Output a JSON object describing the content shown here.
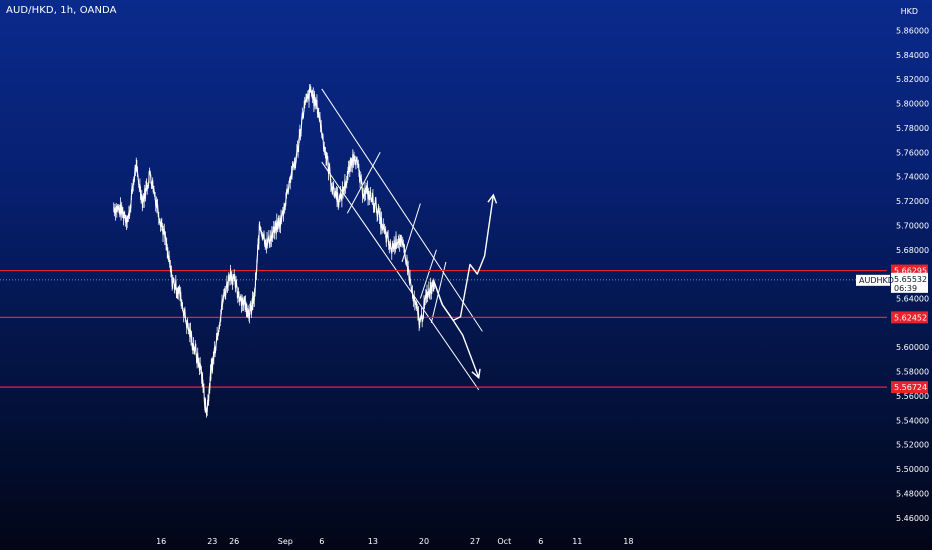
{
  "header": {
    "title": "AUD/HKD, 1h, OANDA"
  },
  "currency_label": "HKD",
  "chart_data": {
    "type": "line",
    "symbol": "AUD/HKD",
    "interval": "1h",
    "source": "OANDA",
    "ylim": [
      5.45,
      5.885
    ],
    "y_ticks": [
      "5.86000",
      "5.84000",
      "5.82000",
      "5.80000",
      "5.78000",
      "5.76000",
      "5.74000",
      "5.72000",
      "5.70000",
      "5.68000",
      "5.64000",
      "5.60000",
      "5.58000",
      "5.56000",
      "5.54000",
      "5.52000",
      "5.50000",
      "5.48000",
      "5.46000"
    ],
    "x_ticks": [
      "16",
      "23",
      "26",
      "Sep",
      "6",
      "13",
      "20",
      "27",
      "Oct",
      "6",
      "11",
      "18"
    ],
    "x_tick_days": [
      -16,
      -9,
      -6,
      1,
      6,
      13,
      20,
      27,
      31,
      36,
      41,
      48
    ],
    "grid": false,
    "current_price": {
      "label": "AUDHKD",
      "value": 5.65532,
      "text": "5.65532",
      "countdown": "06:39"
    },
    "horizontal_levels": [
      {
        "value": 5.66295,
        "text": "5.66295",
        "color": "#e8212b"
      },
      {
        "value": 5.62452,
        "text": "5.62452",
        "color": "#e8212b"
      },
      {
        "value": 5.56724,
        "text": "5.56724",
        "color": "#e8212b"
      }
    ],
    "series": [
      {
        "x": [
          -22.5,
          -21.5,
          -20.5,
          -19.5,
          -18.5,
          -17.5,
          -16.5,
          -15.5,
          -14.5,
          -13.5,
          -12.5,
          -11.5,
          -10.5,
          -9.8,
          -9.2,
          -8.5,
          -7.5,
          -6.5,
          -5.5,
          -4.5,
          -3.8,
          -3.2,
          -2.5,
          -1.5,
          -0.5,
          0.5,
          1.5,
          2.5,
          3.5,
          4.5,
          5.5,
          6.5,
          7.5,
          8.5,
          9.5,
          10.5,
          11.5,
          12.5,
          13.5,
          14.5,
          15.5,
          16.5,
          17.5,
          18.5,
          19.5,
          20.5,
          21.5
        ],
        "y": [
          5.715,
          5.712,
          5.705,
          5.748,
          5.72,
          5.743,
          5.715,
          5.69,
          5.655,
          5.645,
          5.62,
          5.6,
          5.58,
          5.545,
          5.578,
          5.605,
          5.64,
          5.662,
          5.645,
          5.635,
          5.628,
          5.642,
          5.7,
          5.685,
          5.695,
          5.705,
          5.735,
          5.755,
          5.795,
          5.81,
          5.795,
          5.76,
          5.73,
          5.72,
          5.74,
          5.76,
          5.73,
          5.725,
          5.715,
          5.695,
          5.68,
          5.69,
          5.675,
          5.64,
          5.62,
          5.645,
          5.655
        ]
      }
    ]
  },
  "annotations": {
    "channel": {
      "upper": [
        [
          6,
          5.812
        ],
        [
          28,
          5.613
        ]
      ],
      "lower": [
        [
          6,
          5.752
        ],
        [
          27.5,
          5.565
        ]
      ]
    },
    "small_channel_lines": [
      [
        [
          9.5,
          5.71
        ],
        [
          14,
          5.76
        ]
      ],
      [
        [
          17,
          5.67
        ],
        [
          19.5,
          5.718
        ]
      ],
      [
        [
          19.5,
          5.64
        ],
        [
          21.7,
          5.68
        ]
      ],
      [
        [
          21,
          5.62
        ],
        [
          23,
          5.67
        ]
      ]
    ],
    "projection_up": [
      [
        21.3,
        5.655
      ],
      [
        22.5,
        5.635
      ],
      [
        24,
        5.622
      ],
      [
        25,
        5.625
      ],
      [
        26.3,
        5.668
      ],
      [
        27.3,
        5.66
      ],
      [
        28.3,
        5.675
      ],
      [
        29.5,
        5.725
      ]
    ],
    "projection_down": [
      [
        21.3,
        5.655
      ],
      [
        22.5,
        5.635
      ],
      [
        24,
        5.622
      ],
      [
        25.3,
        5.61
      ],
      [
        27.5,
        5.575
      ]
    ]
  }
}
